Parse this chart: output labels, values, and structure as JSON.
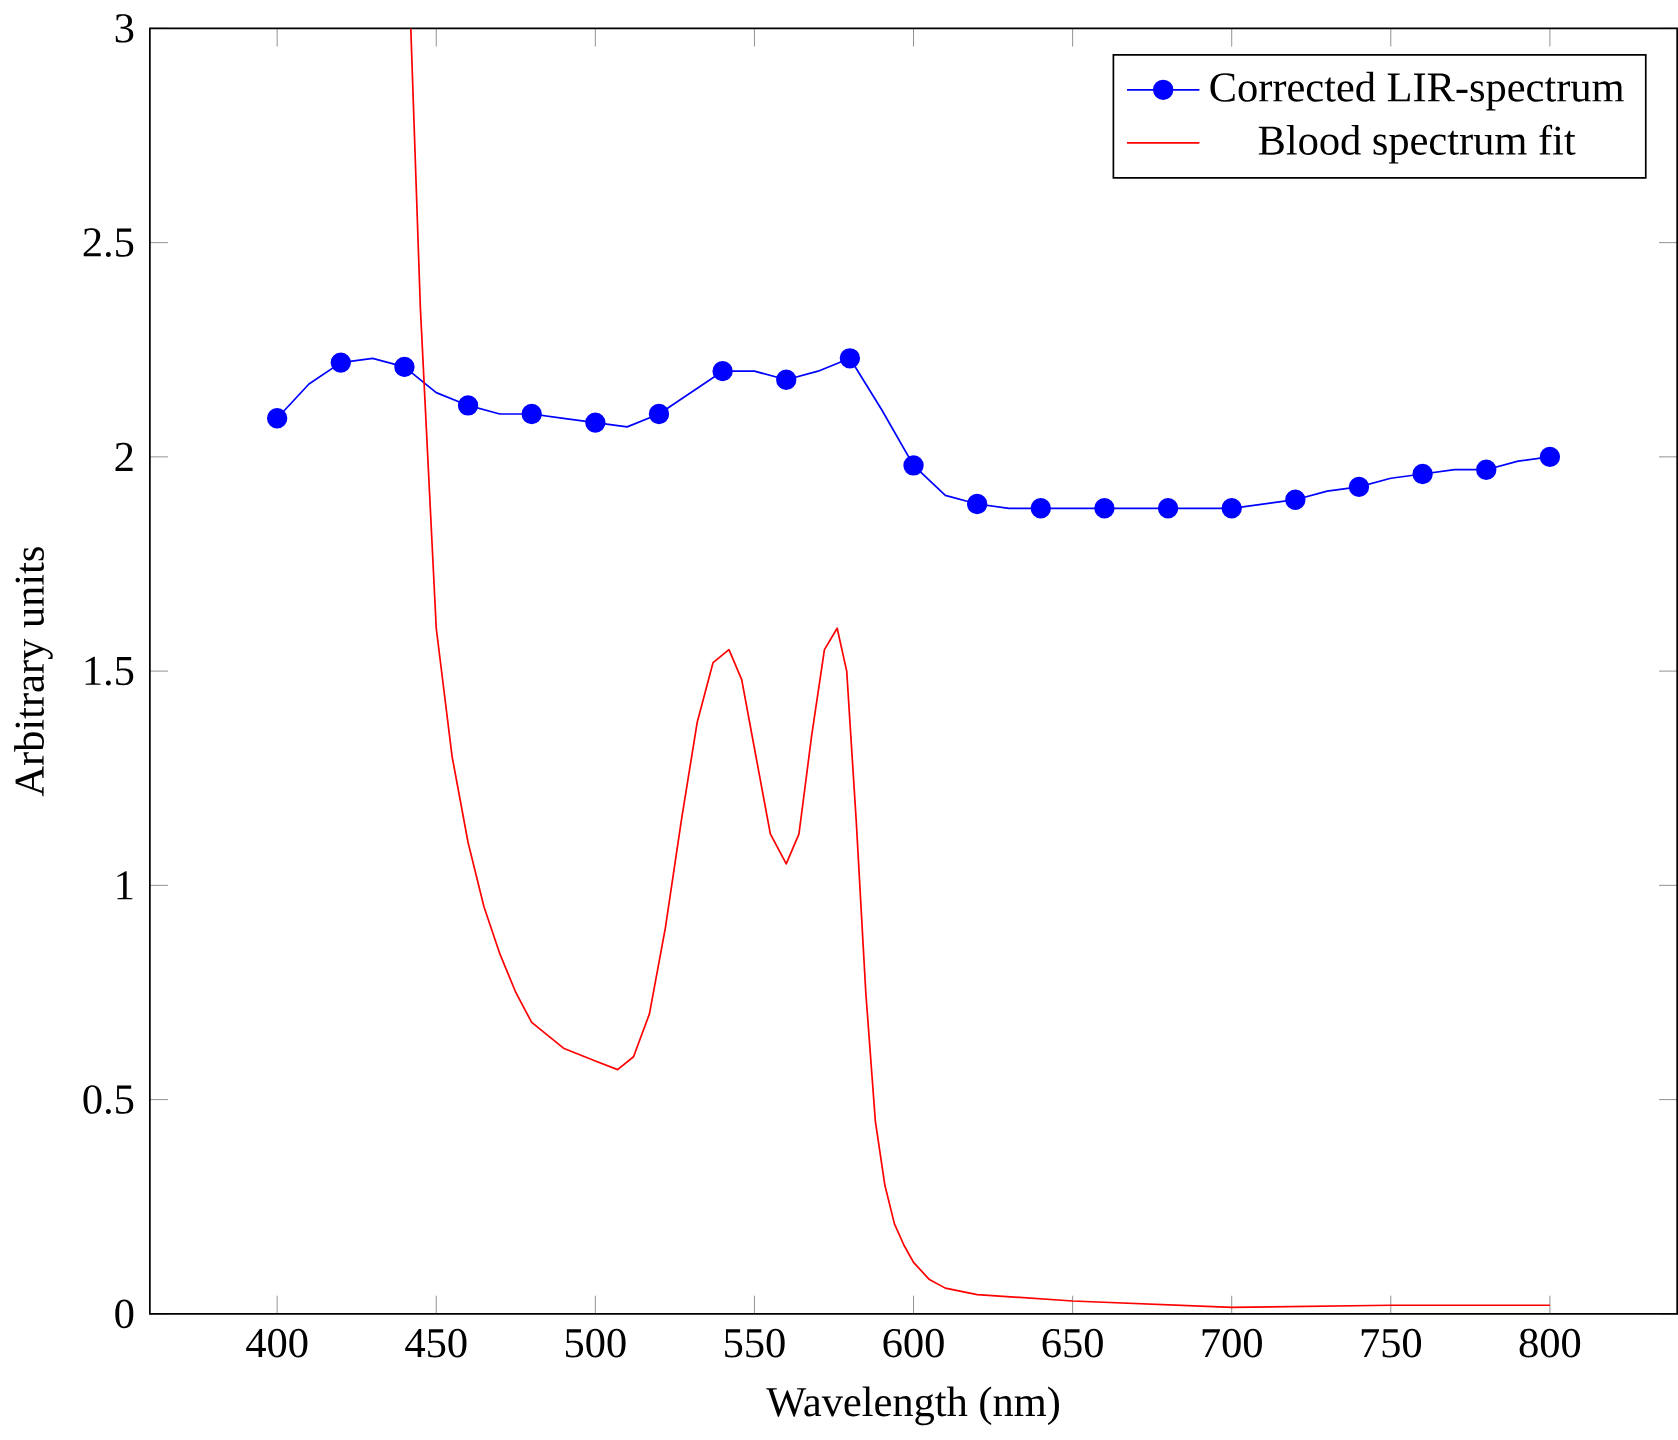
{
  "chart_data": {
    "type": "line",
    "xlabel": "Wavelength (nm)",
    "ylabel": "Arbitrary units",
    "xlim": [
      360,
      840
    ],
    "ylim": [
      0,
      3
    ],
    "xticks": [
      400,
      450,
      500,
      550,
      600,
      650,
      700,
      750,
      800
    ],
    "yticks": [
      0,
      0.5,
      1,
      1.5,
      2,
      2.5,
      3
    ],
    "legend": "top right",
    "grid": false,
    "series": [
      {
        "name": "Corrected LIR-spectrum",
        "color": "#0000ff",
        "marker": "circle",
        "x": [
          400,
          410,
          420,
          430,
          440,
          450,
          460,
          470,
          480,
          490,
          500,
          510,
          520,
          530,
          540,
          550,
          560,
          570,
          580,
          590,
          600,
          610,
          620,
          630,
          640,
          650,
          660,
          670,
          680,
          690,
          700,
          710,
          720,
          730,
          740,
          750,
          760,
          770,
          780,
          790,
          800
        ],
        "values": [
          2.09,
          2.17,
          2.22,
          2.23,
          2.21,
          2.15,
          2.12,
          2.1,
          2.1,
          2.09,
          2.08,
          2.07,
          2.1,
          2.15,
          2.2,
          2.2,
          2.18,
          2.2,
          2.23,
          2.11,
          1.98,
          1.91,
          1.89,
          1.88,
          1.88,
          1.88,
          1.88,
          1.88,
          1.88,
          1.88,
          1.88,
          1.89,
          1.9,
          1.92,
          1.93,
          1.95,
          1.96,
          1.97,
          1.97,
          1.99,
          2.0
        ]
      },
      {
        "name": "Blood spectrum fit",
        "color": "#ff0000",
        "marker": "none",
        "x": [
          442,
          445,
          450,
          455,
          460,
          465,
          470,
          475,
          480,
          490,
          500,
          507,
          512,
          517,
          522,
          527,
          532,
          537,
          542,
          546,
          550,
          555,
          560,
          564,
          568,
          572,
          576,
          579,
          582,
          585,
          588,
          591,
          594,
          597,
          600,
          605,
          610,
          620,
          650,
          700,
          750,
          800
        ],
        "values": [
          3.0,
          2.35,
          1.6,
          1.3,
          1.1,
          0.95,
          0.84,
          0.75,
          0.68,
          0.62,
          0.59,
          0.57,
          0.6,
          0.7,
          0.9,
          1.15,
          1.38,
          1.52,
          1.55,
          1.48,
          1.32,
          1.12,
          1.05,
          1.12,
          1.35,
          1.55,
          1.6,
          1.5,
          1.15,
          0.75,
          0.45,
          0.3,
          0.21,
          0.16,
          0.12,
          0.08,
          0.06,
          0.045,
          0.03,
          0.015,
          0.02,
          0.02
        ]
      }
    ]
  }
}
